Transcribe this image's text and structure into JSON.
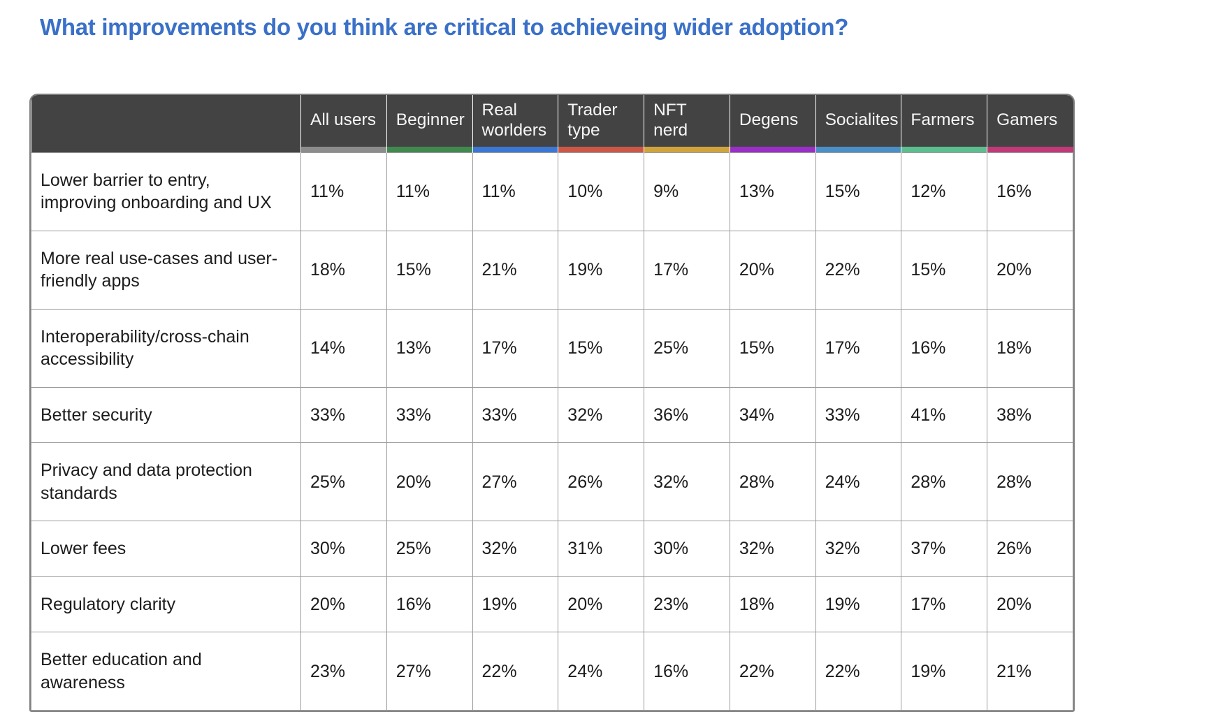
{
  "page": {
    "title": "What improvements do you think are critical to achieveing wider adoption?",
    "title_color": "#3a70c8",
    "background": "#ffffff"
  },
  "table_style": {
    "header_bg": "#434343",
    "header_text_color": "#f6f6f6",
    "border_color": "#9b9b9b"
  },
  "chart_data": {
    "type": "table",
    "title": "What improvements do you think are critical to achieveing wider adoption?",
    "value_suffix": "%",
    "columns": [
      "All users",
      "Beginner",
      "Real worlders",
      "Trader type",
      "NFT nerd",
      "Degens",
      "Socialites",
      "Farmers",
      "Gamers"
    ],
    "column_colors": [
      "#8c8c8c",
      "#41894e",
      "#3c77d3",
      "#cb5847",
      "#d0a43d",
      "#9a2fc7",
      "#4a8fc6",
      "#5cbd8e",
      "#c03a78"
    ],
    "rows": [
      {
        "label": "Lower barrier to entry, improving onboarding and UX",
        "values": [
          11,
          11,
          11,
          10,
          9,
          13,
          15,
          12,
          16
        ]
      },
      {
        "label": "More real use-cases and user-friendly apps",
        "values": [
          18,
          15,
          21,
          19,
          17,
          20,
          22,
          15,
          20
        ]
      },
      {
        "label": "Interoperability/cross-chain accessibility",
        "values": [
          14,
          13,
          17,
          15,
          25,
          15,
          17,
          16,
          18
        ]
      },
      {
        "label": "Better security",
        "values": [
          33,
          33,
          33,
          32,
          36,
          34,
          33,
          41,
          38
        ]
      },
      {
        "label": "Privacy and data protection standards",
        "values": [
          25,
          20,
          27,
          26,
          32,
          28,
          24,
          28,
          28
        ]
      },
      {
        "label": "Lower fees",
        "values": [
          30,
          25,
          32,
          31,
          30,
          32,
          32,
          37,
          26
        ]
      },
      {
        "label": "Regulatory clarity",
        "values": [
          20,
          16,
          19,
          20,
          23,
          18,
          19,
          17,
          20
        ]
      },
      {
        "label": "Better education and awareness",
        "values": [
          23,
          27,
          22,
          24,
          16,
          22,
          22,
          19,
          21
        ]
      }
    ]
  }
}
